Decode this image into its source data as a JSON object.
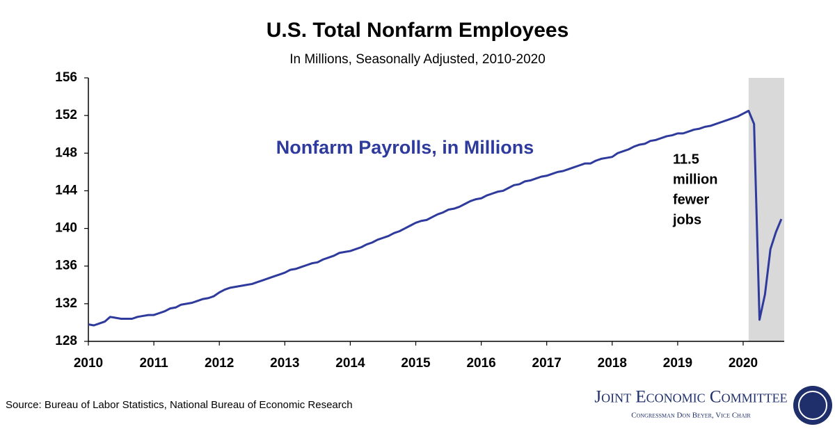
{
  "chart_data": {
    "type": "line",
    "title": "U.S. Total Nonfarm Employees",
    "subtitle": "In Millions, Seasonally Adjusted, 2010-2020",
    "categories": [
      "2010",
      null,
      null,
      null,
      null,
      null,
      null,
      null,
      null,
      null,
      null,
      null,
      "2011",
      null,
      null,
      null,
      null,
      null,
      null,
      null,
      null,
      null,
      null,
      null,
      "2012",
      null,
      null,
      null,
      null,
      null,
      null,
      null,
      null,
      null,
      null,
      null,
      "2013",
      null,
      null,
      null,
      null,
      null,
      null,
      null,
      null,
      null,
      null,
      null,
      "2014",
      null,
      null,
      null,
      null,
      null,
      null,
      null,
      null,
      null,
      null,
      null,
      "2015",
      null,
      null,
      null,
      null,
      null,
      null,
      null,
      null,
      null,
      null,
      null,
      "2016",
      null,
      null,
      null,
      null,
      null,
      null,
      null,
      null,
      null,
      null,
      null,
      "2017",
      null,
      null,
      null,
      null,
      null,
      null,
      null,
      null,
      null,
      null,
      null,
      "2018",
      null,
      null,
      null,
      null,
      null,
      null,
      null,
      null,
      null,
      null,
      null,
      "2019",
      null,
      null,
      null,
      null,
      null,
      null,
      null,
      null,
      null,
      null,
      null,
      "2020",
      null,
      null,
      null,
      null,
      null,
      null,
      null
    ],
    "series": [
      {
        "name": "Nonfarm Payrolls, in Millions",
        "color": "#2e3a9c",
        "values": [
          129.8,
          129.7,
          129.9,
          130.1,
          130.6,
          130.5,
          130.4,
          130.4,
          130.4,
          130.6,
          130.7,
          130.8,
          130.8,
          131.0,
          131.2,
          131.5,
          131.6,
          131.9,
          132.0,
          132.1,
          132.3,
          132.5,
          132.6,
          132.8,
          133.2,
          133.5,
          133.7,
          133.8,
          133.9,
          134.0,
          134.1,
          134.3,
          134.5,
          134.7,
          134.9,
          135.1,
          135.3,
          135.6,
          135.7,
          135.9,
          136.1,
          136.3,
          136.4,
          136.7,
          136.9,
          137.1,
          137.4,
          137.5,
          137.6,
          137.8,
          138.0,
          138.3,
          138.5,
          138.8,
          139.0,
          139.2,
          139.5,
          139.7,
          140.0,
          140.3,
          140.6,
          140.8,
          140.9,
          141.2,
          141.5,
          141.7,
          142.0,
          142.1,
          142.3,
          142.6,
          142.9,
          143.1,
          143.2,
          143.5,
          143.7,
          143.9,
          144.0,
          144.3,
          144.6,
          144.7,
          145.0,
          145.1,
          145.3,
          145.5,
          145.6,
          145.8,
          146.0,
          146.1,
          146.3,
          146.5,
          146.7,
          146.9,
          146.9,
          147.2,
          147.4,
          147.5,
          147.6,
          148.0,
          148.2,
          148.4,
          148.7,
          148.9,
          149.0,
          149.3,
          149.4,
          149.6,
          149.8,
          149.9,
          150.1,
          150.1,
          150.3,
          150.5,
          150.6,
          150.8,
          150.9,
          151.1,
          151.3,
          151.5,
          151.7,
          151.9,
          152.2,
          152.5,
          151.1,
          130.3,
          133.0,
          137.8,
          139.6,
          141.0
        ]
      }
    ],
    "ylim": [
      128,
      156
    ],
    "yticks": [
      128,
      132,
      136,
      140,
      144,
      148,
      152,
      156
    ],
    "grid": false,
    "shaded_range": [
      121,
      127
    ],
    "shade_color": "#d9d9d9",
    "annotation": [
      "11.5",
      "million",
      "fewer",
      "jobs"
    ],
    "source": "Source: Bureau of Labor Statistics, National Bureau of Economic Research"
  },
  "logo": {
    "name": "Joint Economic Committee",
    "subtitle": "Congressman Don Beyer, Vice Chair"
  }
}
